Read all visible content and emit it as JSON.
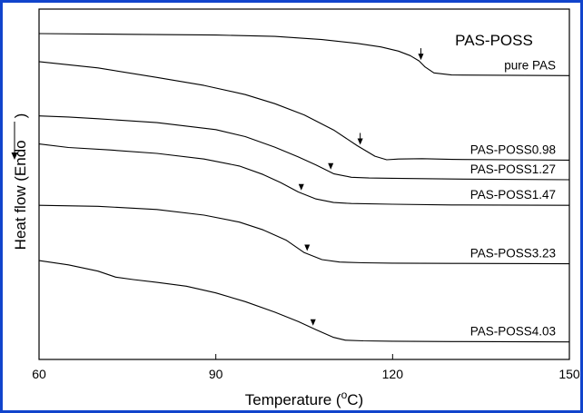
{
  "chart_data": {
    "type": "line",
    "title": "PAS-POSS",
    "xlabel_main": "Temperature (",
    "xlabel_sup": "o",
    "xlabel_end": "C)",
    "ylabel_main": "Heat flow (Endo",
    "ylabel_end": ")",
    "xlim": [
      60,
      150
    ],
    "xticks": [
      "60",
      "90",
      "120",
      "150"
    ],
    "grid": false,
    "series": [
      {
        "name": "pure PAS",
        "transition": 124.8,
        "x": [
          60,
          75,
          90,
          100,
          108,
          114,
          118,
          121,
          123,
          124.5,
          125.5,
          127,
          130,
          150
        ],
        "y": [
          0.93,
          0.928,
          0.926,
          0.922,
          0.913,
          0.902,
          0.892,
          0.88,
          0.867,
          0.852,
          0.835,
          0.818,
          0.812,
          0.81
        ]
      },
      {
        "name": "PAS-POSS0.98",
        "transition": 114.5,
        "x": [
          60,
          70,
          80,
          88,
          95,
          100,
          105,
          110,
          114,
          117,
          119,
          121,
          125,
          130,
          140,
          150
        ],
        "y": [
          0.85,
          0.832,
          0.805,
          0.782,
          0.756,
          0.73,
          0.698,
          0.655,
          0.61,
          0.58,
          0.57,
          0.572,
          0.573,
          0.571,
          0.57,
          0.569
        ]
      },
      {
        "name": "PAS-POSS1.27",
        "transition": 109.5,
        "x": [
          60,
          65,
          70,
          80,
          90,
          95,
          100,
          104,
          107,
          110,
          113,
          116,
          120,
          130,
          150
        ],
        "y": [
          0.695,
          0.692,
          0.687,
          0.676,
          0.656,
          0.636,
          0.606,
          0.578,
          0.555,
          0.53,
          0.52,
          0.518,
          0.517,
          0.515,
          0.513
        ]
      },
      {
        "name": "PAS-POSS1.47",
        "transition": 104.5,
        "x": [
          60,
          65,
          72,
          80,
          88,
          94,
          98,
          101,
          104,
          107,
          110,
          113,
          120,
          130,
          150
        ],
        "y": [
          0.615,
          0.605,
          0.598,
          0.588,
          0.572,
          0.552,
          0.528,
          0.505,
          0.478,
          0.458,
          0.448,
          0.445,
          0.443,
          0.441,
          0.44
        ]
      },
      {
        "name": "PAS-POSS3.23",
        "transition": 105.5,
        "x": [
          60,
          70,
          80,
          88,
          94,
          98,
          102,
          105,
          108,
          111,
          115,
          120,
          130,
          150
        ],
        "y": [
          0.44,
          0.437,
          0.428,
          0.412,
          0.392,
          0.37,
          0.34,
          0.305,
          0.285,
          0.278,
          0.276,
          0.275,
          0.274,
          0.273
        ]
      },
      {
        "name": "PAS-POSS4.03",
        "transition": 106.5,
        "x": [
          60,
          65,
          70,
          73,
          76,
          80,
          85,
          90,
          95,
          100,
          104,
          107,
          110,
          112,
          115,
          120,
          130,
          150
        ],
        "y": [
          0.282,
          0.27,
          0.252,
          0.235,
          0.228,
          0.22,
          0.209,
          0.19,
          0.165,
          0.135,
          0.108,
          0.085,
          0.063,
          0.055,
          0.053,
          0.052,
          0.051,
          0.05
        ]
      }
    ]
  }
}
